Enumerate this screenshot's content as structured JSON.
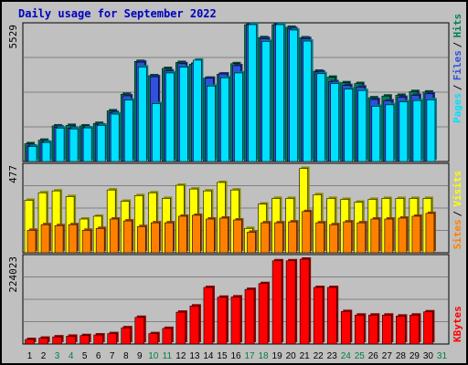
{
  "chart_data": {
    "type": "bar",
    "title": "Daily usage for September 2022",
    "colors": {
      "pages": "#00e0ff",
      "files": "#3050e0",
      "hits": "#00805a",
      "visits": "#ffff00",
      "sites": "#ff8000",
      "kbytes": "#ff0000",
      "panel_bg": "#c0c0c0",
      "grid": "#808080",
      "weekday_label": "#000000",
      "weekend_label": "#008040"
    },
    "categories": [
      "1",
      "2",
      "3",
      "4",
      "5",
      "6",
      "7",
      "8",
      "9",
      "10",
      "11",
      "12",
      "13",
      "14",
      "15",
      "16",
      "17",
      "18",
      "19",
      "20",
      "21",
      "22",
      "23",
      "24",
      "25",
      "26",
      "27",
      "28",
      "29",
      "30",
      "31"
    ],
    "weekend_days": [
      "3",
      "4",
      "10",
      "11",
      "17",
      "18",
      "24",
      "25",
      "31"
    ],
    "panels": [
      {
        "name": "hits-files-pages",
        "ymax_label": "5529",
        "ylim": [
          0,
          5529
        ],
        "legend": [
          {
            "text": "Pages",
            "color_key": "pages"
          },
          {
            "text": "Files",
            "color_key": "files"
          },
          {
            "text": "Hits",
            "color_key": "hits"
          }
        ],
        "series": [
          {
            "name": "Hits",
            "color_key": "hits",
            "values": [
              710,
              850,
              1420,
              1440,
              1420,
              1520,
              2020,
              2680,
              3990,
              3420,
              3710,
              3950,
              3880,
              3320,
              3480,
              3900,
              5670,
              4940,
              5640,
              5350,
              4930,
              3600,
              3360,
              3140,
              3110,
              2540,
              2610,
              2640,
              2790,
              2770,
              0
            ]
          },
          {
            "name": "Files",
            "color_key": "files",
            "values": [
              620,
              780,
              1370,
              1330,
              1350,
              1460,
              1950,
              2620,
              3960,
              3380,
              3610,
              3900,
              3920,
              3320,
              3490,
              3820,
              5650,
              4900,
              5640,
              5300,
              4900,
              3570,
              3180,
              3030,
              2970,
              2470,
              2420,
              2560,
              2640,
              2700,
              0
            ]
          },
          {
            "name": "Pages",
            "color_key": "pages",
            "values": [
              600,
              760,
              1330,
              1300,
              1340,
              1440,
              1890,
              2450,
              3770,
              2310,
              3530,
              3760,
              4040,
              3010,
              3340,
              3530,
              5510,
              4790,
              5470,
              5240,
              4800,
              3500,
              3110,
              2890,
              2830,
              2200,
              2260,
              2380,
              2430,
              2460,
              0
            ]
          }
        ]
      },
      {
        "name": "visits-sites",
        "ymax_label": "477",
        "ylim": [
          0,
          477
        ],
        "legend": [
          {
            "text": "Sites",
            "color_key": "sites"
          },
          {
            "text": "Visits",
            "color_key": "visits"
          }
        ],
        "series": [
          {
            "name": "Visits",
            "color_key": "visits",
            "values": [
              280,
              320,
              330,
              300,
              180,
              195,
              335,
              275,
              305,
              320,
              290,
              360,
              340,
              330,
              375,
              335,
              130,
              260,
              290,
              290,
              450,
              310,
              290,
              285,
              270,
              285,
              290,
              290,
              290,
              290,
              0
            ]
          },
          {
            "name": "Sites",
            "color_key": "sites",
            "values": [
              120,
              150,
              145,
              150,
              120,
              130,
              180,
              170,
              140,
              160,
              160,
              195,
              200,
              180,
              185,
              175,
              110,
              160,
              160,
              165,
              220,
              160,
              150,
              165,
              160,
              180,
              180,
              185,
              195,
              210,
              0
            ]
          }
        ]
      },
      {
        "name": "kbytes",
        "ymax_label": "224023",
        "ylim": [
          0,
          275000
        ],
        "legend": [
          {
            "text": "KBytes",
            "color_key": "kbytes"
          }
        ],
        "series": [
          {
            "name": "KBytes",
            "color_key": "kbytes",
            "values": [
              14000,
              18000,
              22000,
              24000,
              26000,
              28000,
              32000,
              50000,
              82000,
              32000,
              48000,
              98000,
              117000,
              174000,
              144000,
              145000,
              168000,
              186000,
              256000,
              256000,
              261000,
              174000,
              174000,
              100000,
              89000,
              89000,
              89000,
              86000,
              89000,
              99000,
              0
            ]
          }
        ]
      }
    ]
  }
}
